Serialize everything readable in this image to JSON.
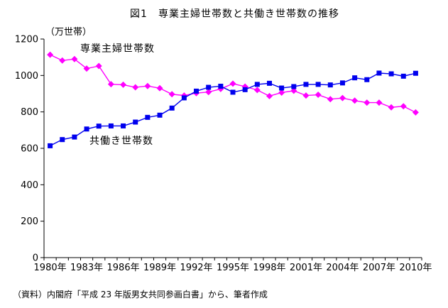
{
  "title": "図1　専業主婦世帯数と共働き世帯数の推移",
  "y_axis_unit": "（万世帯）",
  "footer": "（資料）内閣府「平成 23 年版男女共同参画白書」から、筆者作成",
  "chart_data": {
    "type": "line",
    "x": [
      1980,
      1981,
      1982,
      1983,
      1984,
      1985,
      1986,
      1987,
      1988,
      1989,
      1990,
      1991,
      1992,
      1993,
      1994,
      1995,
      1996,
      1997,
      1998,
      1999,
      2000,
      2001,
      2002,
      2003,
      2004,
      2005,
      2006,
      2007,
      2008,
      2009,
      2010
    ],
    "x_tick_labels": [
      "1980年",
      "1983年",
      "1986年",
      "1989年",
      "1992年",
      "1995年",
      "1998年",
      "2001年",
      "2004年",
      "2007年",
      "2010年"
    ],
    "x_tick_years": [
      1980,
      1983,
      1986,
      1989,
      1992,
      1995,
      1998,
      2001,
      2004,
      2007,
      2010
    ],
    "ylim": [
      0,
      1200
    ],
    "yticks": [
      0,
      200,
      400,
      600,
      800,
      1000,
      1200
    ],
    "grid": false,
    "legend": "floating-text-labels",
    "axis_color": "#000000",
    "series": [
      {
        "name": "専業主婦世帯数",
        "color": "#ff00ff",
        "marker": "diamond",
        "values": [
          1114,
          1082,
          1090,
          1038,
          1052,
          952,
          949,
          935,
          942,
          930,
          897,
          890,
          903,
          909,
          926,
          955,
          939,
          920,
          887,
          906,
          916,
          890,
          894,
          870,
          876,
          862,
          851,
          851,
          825,
          831,
          797
        ]
      },
      {
        "name": "共働き世帯数",
        "color": "#0000ee",
        "marker": "square",
        "values": [
          614,
          648,
          662,
          706,
          722,
          723,
          723,
          744,
          770,
          782,
          821,
          877,
          914,
          935,
          941,
          908,
          922,
          951,
          957,
          931,
          939,
          951,
          951,
          948,
          959,
          987,
          977,
          1013,
          1009,
          996,
          1012
        ]
      }
    ]
  }
}
